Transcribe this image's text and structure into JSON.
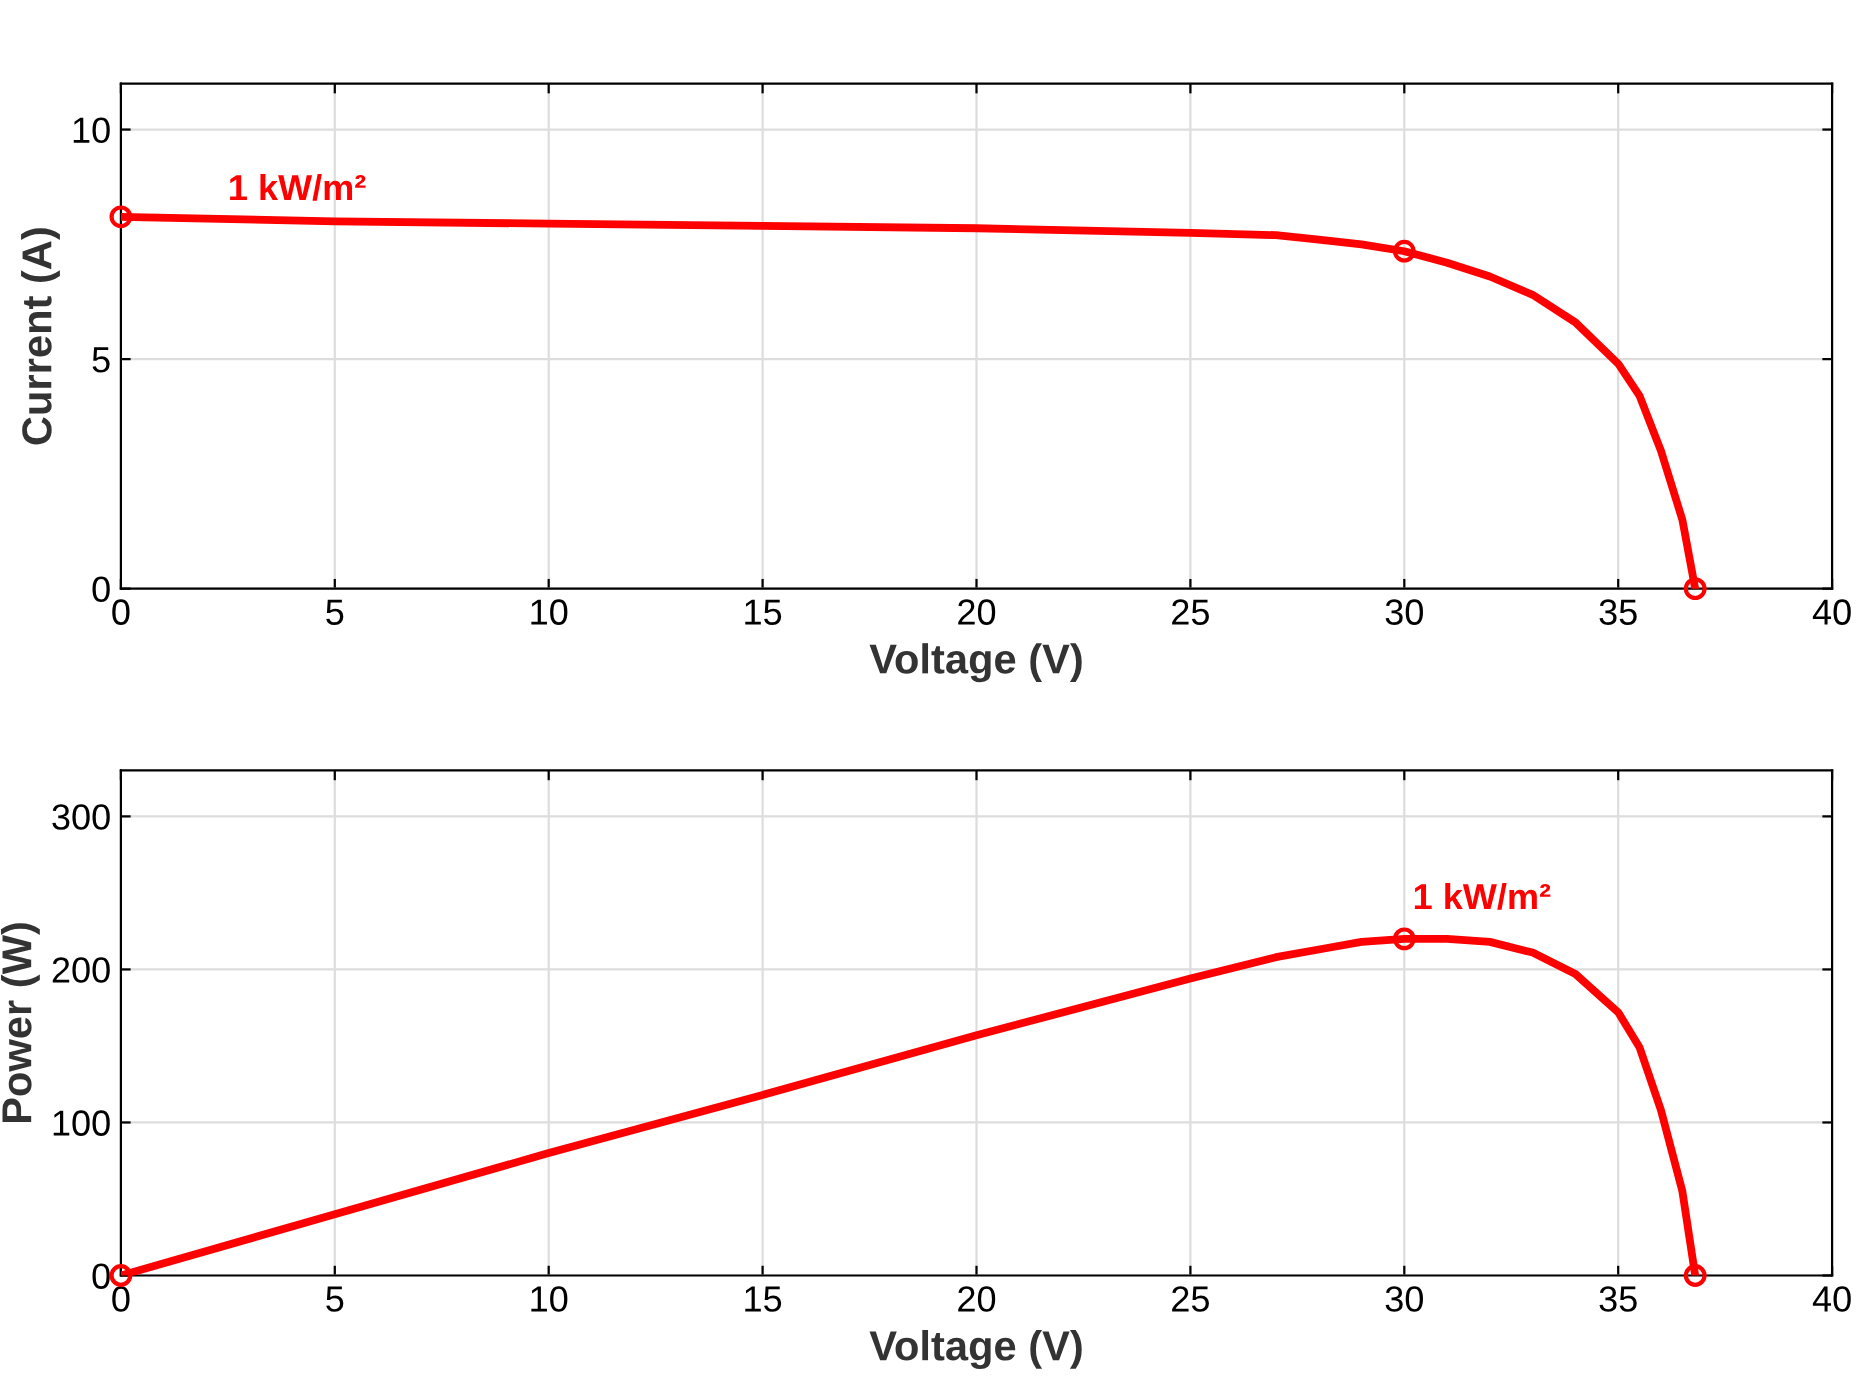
{
  "chart_data": [
    {
      "type": "line",
      "xlabel": "Voltage (V)",
      "ylabel": "Current (A)",
      "xlim": [
        0,
        40
      ],
      "xticks": [
        0,
        5,
        10,
        15,
        20,
        25,
        30,
        35,
        40
      ],
      "ylim": [
        0,
        11
      ],
      "yticks": [
        0,
        5,
        10
      ],
      "grid": true,
      "line_style": "solid",
      "annotations": [
        {
          "text": "1 kW/m²",
          "x": 2.5,
          "y": 8.3
        }
      ],
      "series": [
        {
          "color": "#ff0000",
          "marker": "none",
          "x": [
            0,
            5,
            10,
            15,
            20,
            25,
            27,
            28,
            29,
            30,
            31,
            32,
            33,
            34,
            35,
            35.5,
            36,
            36.5,
            36.8
          ],
          "values": [
            8.1,
            8.0,
            7.95,
            7.9,
            7.85,
            7.75,
            7.7,
            7.6,
            7.5,
            7.35,
            7.1,
            6.8,
            6.4,
            5.8,
            4.9,
            4.2,
            3.0,
            1.5,
            0
          ]
        },
        {
          "type": "scatter",
          "color": "#ff0000",
          "marker": "circle",
          "x": [
            0,
            30,
            36.8
          ],
          "values": [
            8.1,
            7.35,
            0
          ]
        }
      ]
    },
    {
      "type": "line",
      "xlabel": "Voltage (V)",
      "ylabel": "Power (W)",
      "xlim": [
        0,
        40
      ],
      "xticks": [
        0,
        5,
        10,
        15,
        20,
        25,
        30,
        35,
        40
      ],
      "ylim": [
        0,
        330
      ],
      "yticks": [
        0,
        100,
        200,
        300
      ],
      "grid": true,
      "line_style": "solid",
      "annotations": [
        "1 kW/m²"
      ],
      "series": [
        {
          "color": "#ff0000",
          "marker": "none",
          "x": [
            0,
            5,
            10,
            15,
            20,
            25,
            27,
            28,
            29,
            30,
            31,
            32,
            33,
            34,
            35,
            35.5,
            36,
            36.5,
            36.8
          ],
          "values": [
            0,
            40,
            80,
            118,
            157,
            194,
            208,
            213,
            218,
            220,
            220,
            218,
            211,
            197,
            172,
            149,
            108,
            55,
            0
          ]
        },
        {
          "type": "scatter",
          "color": "#ff0000",
          "marker": "circle",
          "x": [
            0,
            30,
            36.8
          ],
          "values": [
            0,
            220,
            0
          ]
        }
      ]
    }
  ]
}
